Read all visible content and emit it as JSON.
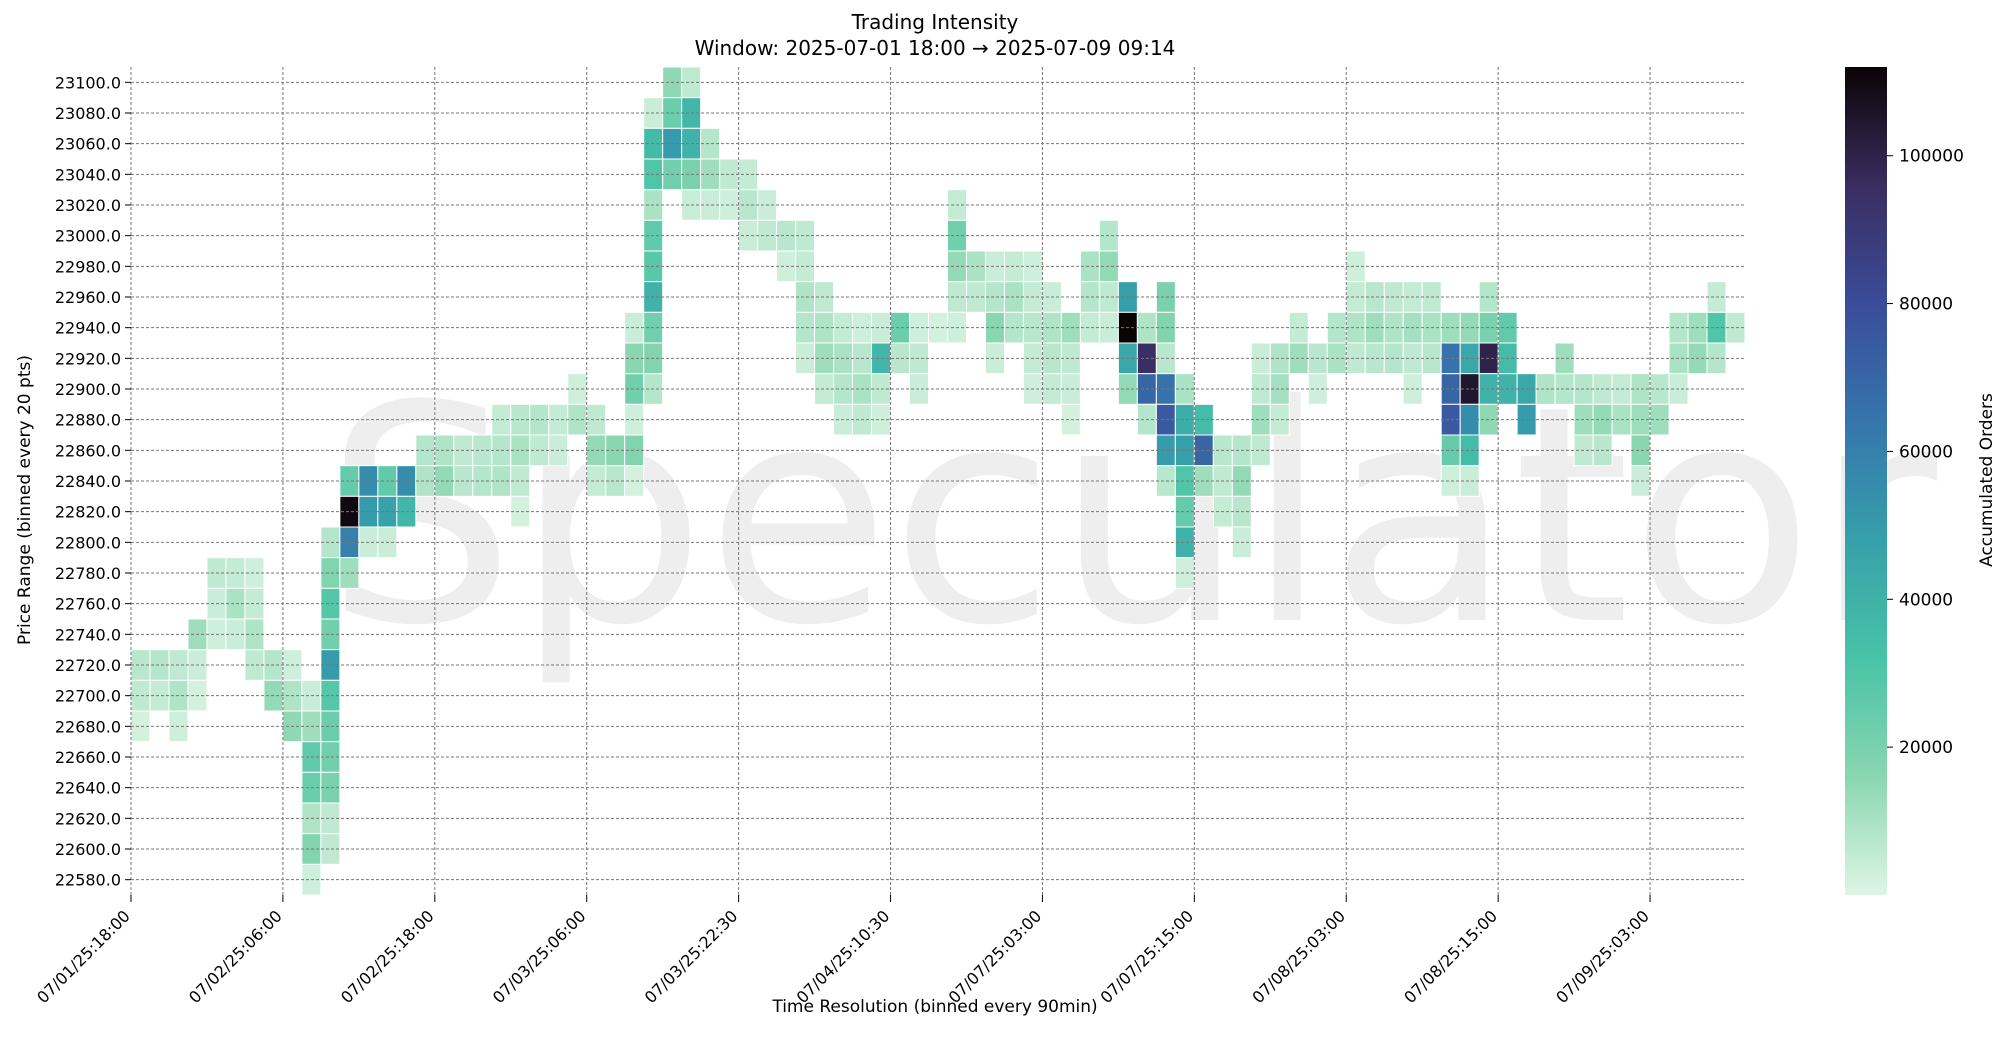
{
  "chart_data": {
    "type": "heatmap",
    "title": "Trading Intensity",
    "subtitle": "Window: 2025-07-01 18:00 → 2025-07-09 09:14",
    "xlabel": "Time Resolution (binned every 90min)",
    "ylabel": "Price Range (binned every 20 pts)",
    "watermark": "Speculator",
    "x_tick_labels": [
      "07/01/25:18:00",
      "07/02/25:06:00",
      "07/02/25:18:00",
      "07/03/25:06:00",
      "07/03/25:22:30",
      "07/04/25:10:30",
      "07/07/25:03:00",
      "07/07/25:15:00",
      "07/08/25:03:00",
      "07/08/25:15:00",
      "07/09/25:03:00"
    ],
    "x_tick_bins": [
      0,
      8,
      16,
      24,
      32,
      40,
      48,
      56,
      64,
      72,
      80
    ],
    "y_tick_labels": [
      "23100.0",
      "23080.0",
      "23060.0",
      "23040.0",
      "23020.0",
      "23000.0",
      "22980.0",
      "22960.0",
      "22940.0",
      "22920.0",
      "22900.0",
      "22880.0",
      "22860.0",
      "22840.0",
      "22820.0",
      "22800.0",
      "22780.0",
      "22760.0",
      "22740.0",
      "22720.0",
      "22700.0",
      "22680.0",
      "22660.0",
      "22640.0",
      "22620.0",
      "22600.0",
      "22580.0"
    ],
    "n_time_bins": 85,
    "price_bins": [
      23100,
      23080,
      23060,
      23040,
      23020,
      23000,
      22980,
      22960,
      22940,
      22920,
      22900,
      22880,
      22860,
      22840,
      22820,
      22800,
      22780,
      22760,
      22740,
      22720,
      22700,
      22680,
      22660,
      22640,
      22620,
      22600,
      22580
    ],
    "cells": [
      [
        0,
        22720,
        7000
      ],
      [
        0,
        22700,
        6000
      ],
      [
        0,
        22680,
        2000
      ],
      [
        1,
        22720,
        8000
      ],
      [
        1,
        22700,
        5000
      ],
      [
        2,
        22720,
        6000
      ],
      [
        2,
        22700,
        9000
      ],
      [
        2,
        22680,
        3000
      ],
      [
        3,
        22720,
        4000
      ],
      [
        3,
        22700,
        2000
      ],
      [
        4,
        22780,
        6000
      ],
      [
        4,
        22760,
        4000
      ],
      [
        4,
        22740,
        3000
      ],
      [
        3,
        22740,
        12000
      ],
      [
        5,
        22780,
        5000
      ],
      [
        5,
        22760,
        10000
      ],
      [
        5,
        22740,
        4000
      ],
      [
        6,
        22780,
        3000
      ],
      [
        6,
        22760,
        5000
      ],
      [
        6,
        22740,
        9000
      ],
      [
        6,
        22720,
        6000
      ],
      [
        7,
        22720,
        8000
      ],
      [
        7,
        22700,
        14000
      ],
      [
        8,
        22720,
        3000
      ],
      [
        8,
        22700,
        9000
      ],
      [
        8,
        22680,
        15000
      ],
      [
        9,
        22700,
        4000
      ],
      [
        9,
        22680,
        12000
      ],
      [
        9,
        22660,
        26000
      ],
      [
        9,
        22640,
        24000
      ],
      [
        9,
        22620,
        9000
      ],
      [
        9,
        22600,
        18000
      ],
      [
        9,
        22580,
        3000
      ],
      [
        10,
        22800,
        8000
      ],
      [
        10,
        22780,
        18000
      ],
      [
        10,
        22760,
        29000
      ],
      [
        10,
        22740,
        22000
      ],
      [
        10,
        22720,
        50000
      ],
      [
        10,
        22700,
        29000
      ],
      [
        10,
        22680,
        24000
      ],
      [
        10,
        22660,
        22000
      ],
      [
        10,
        22640,
        20000
      ],
      [
        10,
        22620,
        6000
      ],
      [
        10,
        22600,
        6000
      ],
      [
        11,
        22840,
        25000
      ],
      [
        11,
        22820,
        110000
      ],
      [
        11,
        22800,
        60000
      ],
      [
        11,
        22780,
        12000
      ],
      [
        12,
        22840,
        55000
      ],
      [
        12,
        22820,
        50000
      ],
      [
        12,
        22800,
        4000
      ],
      [
        13,
        22840,
        26000
      ],
      [
        13,
        22820,
        47000
      ],
      [
        13,
        22800,
        4000
      ],
      [
        14,
        22840,
        55000
      ],
      [
        14,
        22820,
        38000
      ],
      [
        15,
        22860,
        8000
      ],
      [
        15,
        22840,
        9000
      ],
      [
        16,
        22860,
        9000
      ],
      [
        16,
        22840,
        14000
      ],
      [
        17,
        22860,
        6000
      ],
      [
        17,
        22840,
        7000
      ],
      [
        18,
        22860,
        7000
      ],
      [
        18,
        22840,
        8000
      ],
      [
        19,
        22880,
        5000
      ],
      [
        19,
        22860,
        8000
      ],
      [
        19,
        22840,
        9000
      ],
      [
        20,
        22880,
        7000
      ],
      [
        20,
        22860,
        10000
      ],
      [
        20,
        22840,
        6000
      ],
      [
        20,
        22820,
        2000
      ],
      [
        21,
        22880,
        8000
      ],
      [
        21,
        22860,
        6000
      ],
      [
        22,
        22880,
        5000
      ],
      [
        22,
        22860,
        4000
      ],
      [
        23,
        22900,
        3000
      ],
      [
        23,
        22880,
        9000
      ],
      [
        24,
        22880,
        6000
      ],
      [
        24,
        22860,
        14000
      ],
      [
        24,
        22840,
        5000
      ],
      [
        25,
        22860,
        16000
      ],
      [
        25,
        22840,
        7000
      ],
      [
        26,
        22940,
        4000
      ],
      [
        26,
        22920,
        16000
      ],
      [
        26,
        22900,
        22000
      ],
      [
        26,
        22880,
        3000
      ],
      [
        26,
        22860,
        18000
      ],
      [
        26,
        22840,
        2000
      ],
      [
        27,
        23080,
        4000
      ],
      [
        27,
        23060,
        36000
      ],
      [
        27,
        23040,
        30000
      ],
      [
        27,
        23020,
        10000
      ],
      [
        27,
        23000,
        26000
      ],
      [
        27,
        22980,
        28000
      ],
      [
        27,
        22960,
        40000
      ],
      [
        27,
        22940,
        22000
      ],
      [
        27,
        22920,
        18000
      ],
      [
        27,
        22900,
        8000
      ],
      [
        28,
        23100,
        15000
      ],
      [
        28,
        23080,
        24000
      ],
      [
        28,
        23060,
        50000
      ],
      [
        28,
        23040,
        22000
      ],
      [
        29,
        23100,
        6000
      ],
      [
        29,
        23080,
        38000
      ],
      [
        29,
        23060,
        40000
      ],
      [
        29,
        23040,
        20000
      ],
      [
        29,
        23020,
        4000
      ],
      [
        30,
        23060,
        8000
      ],
      [
        30,
        23040,
        12000
      ],
      [
        30,
        23020,
        4000
      ],
      [
        31,
        23040,
        6000
      ],
      [
        31,
        23020,
        3000
      ],
      [
        32,
        23040,
        5000
      ],
      [
        32,
        23020,
        7000
      ],
      [
        32,
        23000,
        4000
      ],
      [
        33,
        23020,
        4000
      ],
      [
        33,
        23000,
        6000
      ],
      [
        34,
        23000,
        7000
      ],
      [
        34,
        22980,
        3000
      ],
      [
        35,
        23000,
        6000
      ],
      [
        35,
        22980,
        5000
      ],
      [
        35,
        22960,
        9000
      ],
      [
        35,
        22940,
        8000
      ],
      [
        35,
        22920,
        4000
      ],
      [
        36,
        22960,
        6000
      ],
      [
        36,
        22940,
        9000
      ],
      [
        36,
        22920,
        12000
      ],
      [
        36,
        22900,
        5000
      ],
      [
        37,
        22940,
        5000
      ],
      [
        37,
        22920,
        10000
      ],
      [
        37,
        22900,
        8000
      ],
      [
        37,
        22880,
        4000
      ],
      [
        38,
        22940,
        3000
      ],
      [
        38,
        22920,
        7000
      ],
      [
        38,
        22900,
        10000
      ],
      [
        38,
        22880,
        6000
      ],
      [
        39,
        22940,
        4000
      ],
      [
        39,
        22920,
        38000
      ],
      [
        39,
        22900,
        6000
      ],
      [
        39,
        22880,
        3000
      ],
      [
        40,
        22940,
        24000
      ],
      [
        40,
        22920,
        7000
      ],
      [
        41,
        22940,
        3000
      ],
      [
        41,
        22920,
        6000
      ],
      [
        41,
        22900,
        4000
      ],
      [
        42,
        22940,
        2000
      ],
      [
        43,
        23020,
        5000
      ],
      [
        43,
        23000,
        22000
      ],
      [
        43,
        22980,
        14000
      ],
      [
        43,
        22960,
        6000
      ],
      [
        43,
        22940,
        3000
      ],
      [
        44,
        22980,
        10000
      ],
      [
        44,
        22960,
        6000
      ],
      [
        45,
        22980,
        4000
      ],
      [
        45,
        22960,
        8000
      ],
      [
        45,
        22940,
        16000
      ],
      [
        45,
        22920,
        4000
      ],
      [
        46,
        22980,
        5000
      ],
      [
        46,
        22960,
        10000
      ],
      [
        46,
        22940,
        8000
      ],
      [
        47,
        22980,
        3000
      ],
      [
        47,
        22960,
        5000
      ],
      [
        47,
        22940,
        7000
      ],
      [
        47,
        22920,
        5000
      ],
      [
        47,
        22900,
        3000
      ],
      [
        48,
        22960,
        4000
      ],
      [
        48,
        22940,
        9000
      ],
      [
        48,
        22920,
        7000
      ],
      [
        48,
        22900,
        5000
      ],
      [
        49,
        22940,
        12000
      ],
      [
        49,
        22920,
        6000
      ],
      [
        49,
        22900,
        4000
      ],
      [
        49,
        22880,
        2000
      ],
      [
        50,
        22980,
        10000
      ],
      [
        50,
        22960,
        8000
      ],
      [
        50,
        22940,
        5000
      ],
      [
        51,
        23000,
        8000
      ],
      [
        51,
        22980,
        14000
      ],
      [
        51,
        22960,
        6000
      ],
      [
        51,
        22940,
        4000
      ],
      [
        52,
        22960,
        48000
      ],
      [
        52,
        22940,
        112000
      ],
      [
        52,
        22920,
        45000
      ],
      [
        52,
        22900,
        14000
      ],
      [
        53,
        22940,
        9000
      ],
      [
        53,
        22920,
        95000
      ],
      [
        53,
        22900,
        70000
      ],
      [
        53,
        22880,
        8000
      ],
      [
        54,
        22960,
        20000
      ],
      [
        54,
        22940,
        18000
      ],
      [
        54,
        22920,
        7000
      ],
      [
        54,
        22900,
        65000
      ],
      [
        54,
        22880,
        75000
      ],
      [
        54,
        22860,
        50000
      ],
      [
        54,
        22840,
        7000
      ],
      [
        55,
        22900,
        10000
      ],
      [
        55,
        22880,
        42000
      ],
      [
        55,
        22860,
        48000
      ],
      [
        55,
        22840,
        30000
      ],
      [
        55,
        22820,
        25000
      ],
      [
        55,
        22800,
        40000
      ],
      [
        55,
        22780,
        3000
      ],
      [
        56,
        22880,
        35000
      ],
      [
        56,
        22860,
        70000
      ],
      [
        56,
        22840,
        12000
      ],
      [
        57,
        22860,
        7000
      ],
      [
        57,
        22840,
        6000
      ],
      [
        57,
        22820,
        5000
      ],
      [
        58,
        22860,
        8000
      ],
      [
        58,
        22840,
        14000
      ],
      [
        58,
        22820,
        7000
      ],
      [
        58,
        22800,
        4000
      ],
      [
        59,
        22920,
        4000
      ],
      [
        59,
        22900,
        6000
      ],
      [
        59,
        22880,
        12000
      ],
      [
        59,
        22860,
        6000
      ],
      [
        60,
        22920,
        9000
      ],
      [
        60,
        22900,
        11000
      ],
      [
        60,
        22880,
        5000
      ],
      [
        61,
        22940,
        5000
      ],
      [
        61,
        22920,
        12000
      ],
      [
        62,
        22920,
        7000
      ],
      [
        62,
        22900,
        3000
      ],
      [
        63,
        22940,
        8000
      ],
      [
        63,
        22920,
        10000
      ],
      [
        64,
        22980,
        3000
      ],
      [
        64,
        22960,
        5000
      ],
      [
        64,
        22940,
        9000
      ],
      [
        64,
        22920,
        6000
      ],
      [
        65,
        22960,
        7000
      ],
      [
        65,
        22940,
        12000
      ],
      [
        65,
        22920,
        7000
      ],
      [
        66,
        22960,
        6000
      ],
      [
        66,
        22940,
        9000
      ],
      [
        66,
        22920,
        8000
      ],
      [
        67,
        22960,
        5000
      ],
      [
        67,
        22940,
        11000
      ],
      [
        67,
        22920,
        6000
      ],
      [
        67,
        22900,
        3000
      ],
      [
        68,
        22960,
        6000
      ],
      [
        68,
        22940,
        10000
      ],
      [
        68,
        22920,
        7000
      ],
      [
        69,
        22940,
        12000
      ],
      [
        69,
        22920,
        65000
      ],
      [
        69,
        22900,
        70000
      ],
      [
        69,
        22880,
        75000
      ],
      [
        69,
        22860,
        25000
      ],
      [
        69,
        22840,
        3000
      ],
      [
        70,
        22940,
        14000
      ],
      [
        70,
        22920,
        45000
      ],
      [
        70,
        22900,
        105000
      ],
      [
        70,
        22880,
        55000
      ],
      [
        70,
        22860,
        35000
      ],
      [
        70,
        22840,
        4000
      ],
      [
        71,
        22960,
        8000
      ],
      [
        71,
        22940,
        20000
      ],
      [
        71,
        22920,
        100000
      ],
      [
        71,
        22900,
        40000
      ],
      [
        71,
        22880,
        15000
      ],
      [
        72,
        22940,
        26000
      ],
      [
        72,
        22920,
        35000
      ],
      [
        72,
        22900,
        40000
      ],
      [
        73,
        22900,
        45000
      ],
      [
        73,
        22880,
        50000
      ],
      [
        74,
        22900,
        9000
      ],
      [
        75,
        22920,
        12000
      ],
      [
        75,
        22900,
        8000
      ],
      [
        76,
        22900,
        8000
      ],
      [
        76,
        22880,
        12000
      ],
      [
        76,
        22860,
        6000
      ],
      [
        77,
        22900,
        6000
      ],
      [
        77,
        22880,
        14000
      ],
      [
        77,
        22860,
        7000
      ],
      [
        78,
        22900,
        5000
      ],
      [
        78,
        22880,
        10000
      ],
      [
        79,
        22900,
        9000
      ],
      [
        79,
        22880,
        12000
      ],
      [
        79,
        22860,
        16000
      ],
      [
        79,
        22840,
        4000
      ],
      [
        80,
        22900,
        7000
      ],
      [
        80,
        22880,
        12000
      ],
      [
        81,
        22940,
        8000
      ],
      [
        81,
        22920,
        10000
      ],
      [
        81,
        22900,
        4000
      ],
      [
        82,
        22940,
        12000
      ],
      [
        82,
        22920,
        14000
      ],
      [
        83,
        22960,
        5000
      ],
      [
        83,
        22940,
        30000
      ],
      [
        83,
        22920,
        8000
      ],
      [
        84,
        22940,
        6000
      ]
    ],
    "colorbar": {
      "label": "Accumulated Orders",
      "min": 0,
      "max": 112000,
      "ticks": [
        20000,
        40000,
        60000,
        80000,
        100000
      ],
      "tick_labels": [
        "20000",
        "40000",
        "60000",
        "80000",
        "100000"
      ],
      "colors": [
        "#def5e5",
        "#8ad6b0",
        "#49c3a7",
        "#36a0aa",
        "#3675ac",
        "#3a4c9a",
        "#3a2d61",
        "#0b0405"
      ]
    },
    "grid": true,
    "grid_style": "dashed"
  }
}
